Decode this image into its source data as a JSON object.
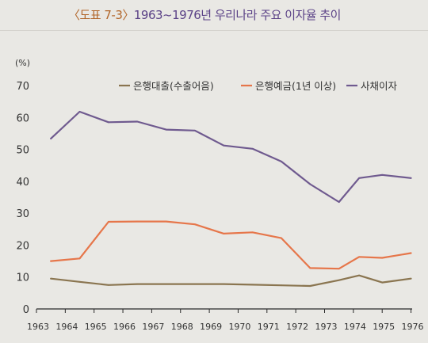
{
  "header": {
    "figure_no": "〈도표 7-3〉",
    "title": "1963~1976년 우리나라 주요 이자율 추이"
  },
  "chart_data": {
    "type": "line",
    "unit_label": "(%)",
    "x": [
      "1963",
      "1964",
      "1965",
      "1966",
      "1967",
      "1968",
      "1969",
      "1970",
      "1971",
      "1972",
      "1973",
      "1974",
      "1975",
      "1976"
    ],
    "y_ticks": [
      "0",
      "10",
      "20",
      "30",
      "40",
      "50",
      "60",
      "70"
    ],
    "ylim": [
      0,
      70
    ],
    "grid": false,
    "legend_position": "top",
    "series": [
      {
        "name": "은행대출(수출어음)",
        "color": "#8a7550",
        "points": [
          [
            1963.5,
            9.5
          ],
          [
            1964.5,
            8.5
          ],
          [
            1965.5,
            7.5
          ],
          [
            1966.5,
            7.8
          ],
          [
            1967.5,
            7.8
          ],
          [
            1968.5,
            7.8
          ],
          [
            1969.5,
            7.8
          ],
          [
            1970.5,
            7.6
          ],
          [
            1971.5,
            7.4
          ],
          [
            1972.5,
            7.2
          ],
          [
            1973.5,
            9.0
          ],
          [
            1974.2,
            10.5
          ],
          [
            1975.0,
            8.3
          ],
          [
            1976.0,
            9.5
          ]
        ]
      },
      {
        "name": "은행예금(1년 이상)",
        "color": "#e6764a",
        "points": [
          [
            1963.5,
            15.0
          ],
          [
            1964.5,
            15.8
          ],
          [
            1965.5,
            27.3
          ],
          [
            1966.5,
            27.4
          ],
          [
            1967.5,
            27.4
          ],
          [
            1968.5,
            26.5
          ],
          [
            1969.5,
            23.6
          ],
          [
            1970.5,
            24.0
          ],
          [
            1971.5,
            22.2
          ],
          [
            1972.5,
            12.8
          ],
          [
            1973.5,
            12.6
          ],
          [
            1974.2,
            16.3
          ],
          [
            1975.0,
            16.0
          ],
          [
            1976.0,
            17.5
          ]
        ]
      },
      {
        "name": "사채이자",
        "color": "#6f5a8f",
        "points": [
          [
            1963.5,
            53.4
          ],
          [
            1964.5,
            61.8
          ],
          [
            1965.5,
            58.5
          ],
          [
            1966.5,
            58.7
          ],
          [
            1967.5,
            56.2
          ],
          [
            1968.5,
            55.9
          ],
          [
            1969.5,
            51.2
          ],
          [
            1970.5,
            50.2
          ],
          [
            1971.5,
            46.2
          ],
          [
            1972.5,
            39.1
          ],
          [
            1973.5,
            33.5
          ],
          [
            1974.2,
            41.0
          ],
          [
            1975.0,
            42.0
          ],
          [
            1976.0,
            41.0
          ]
        ]
      }
    ]
  }
}
